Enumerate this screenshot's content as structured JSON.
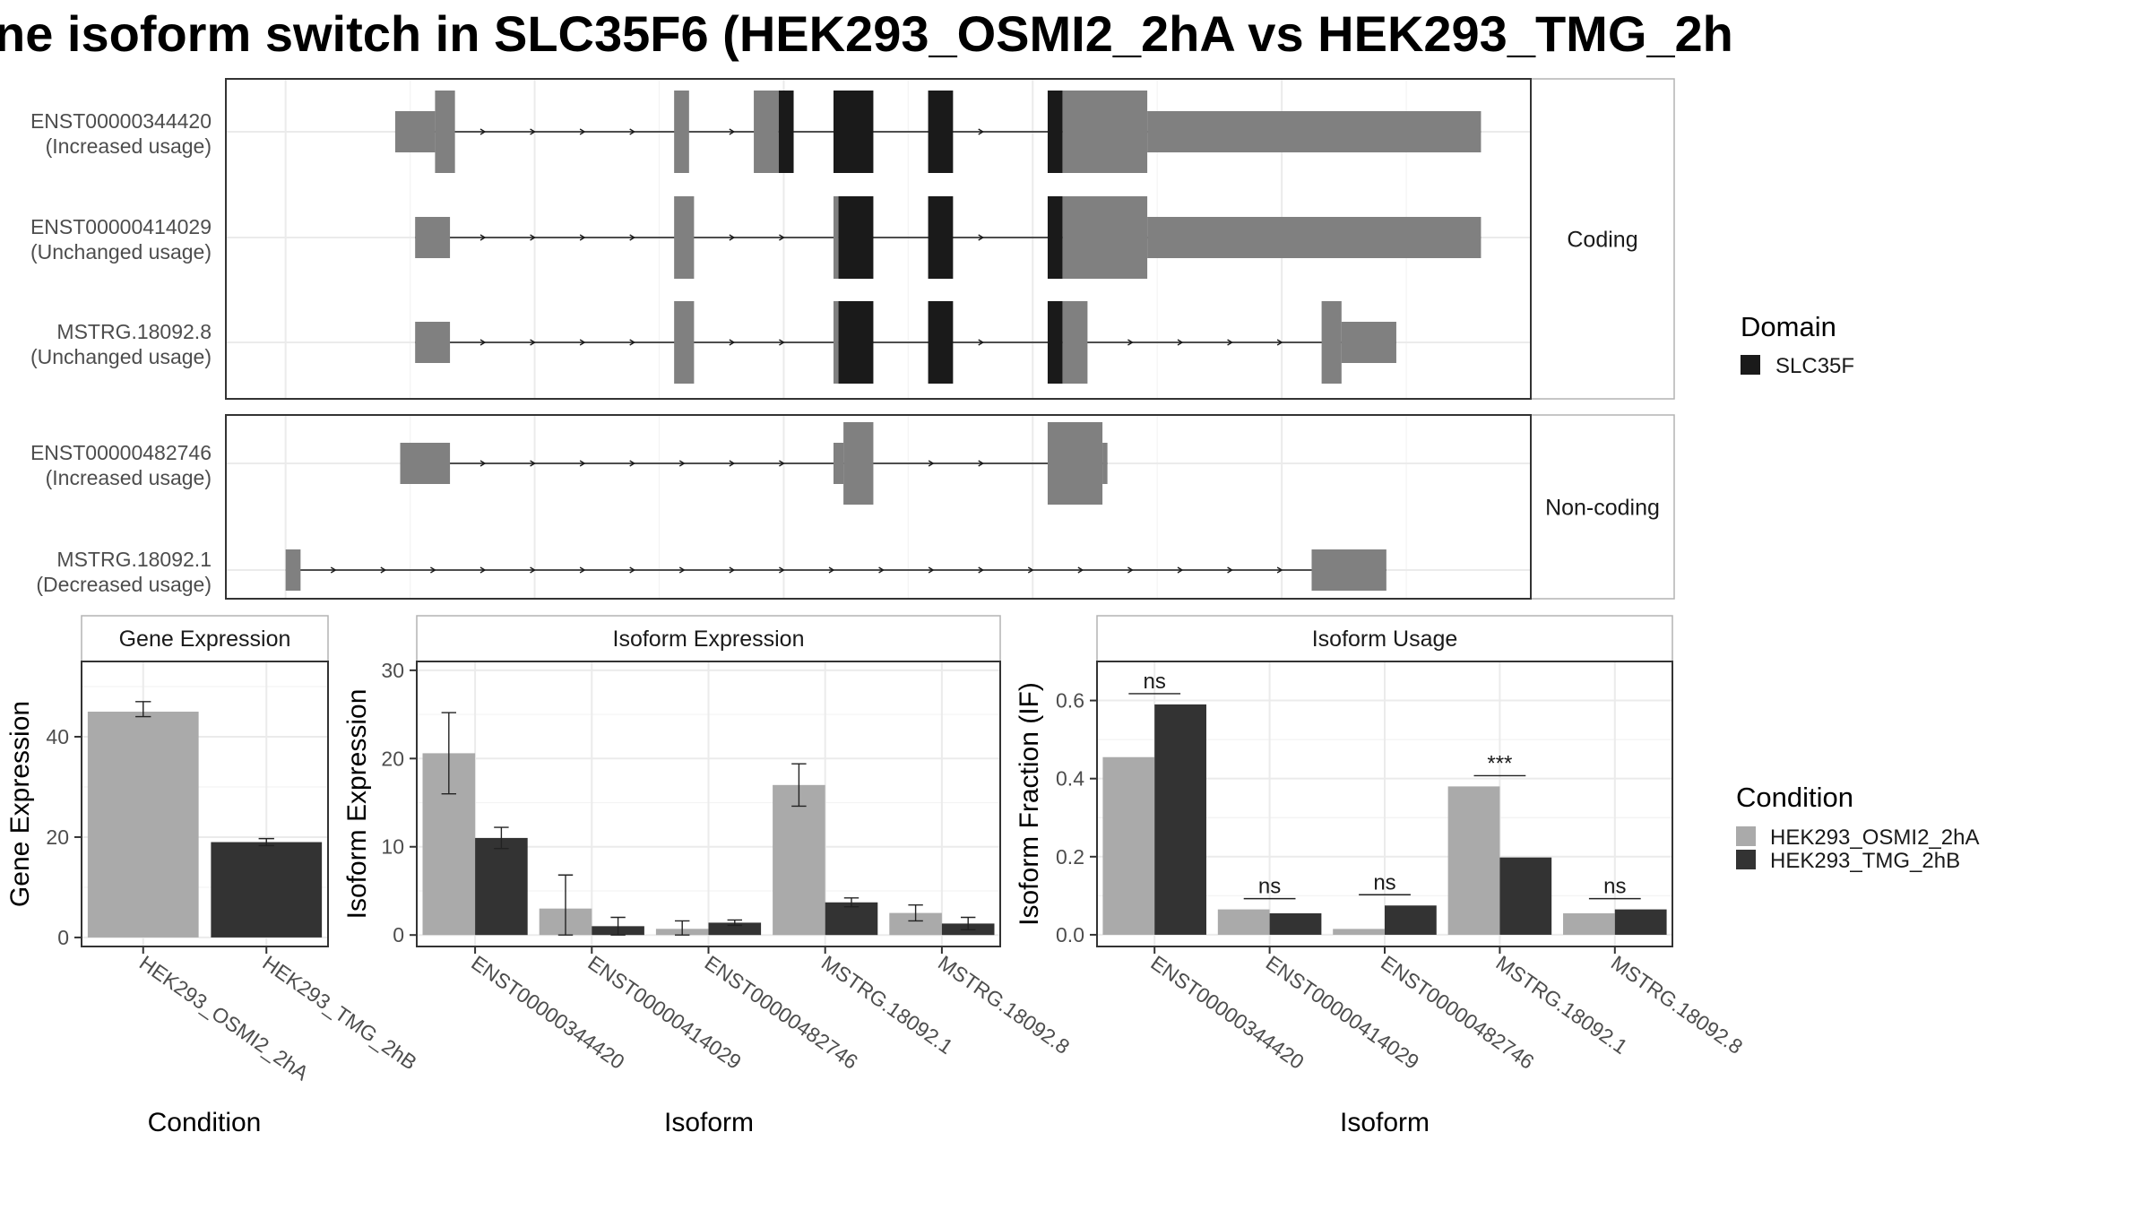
{
  "title": "ne isoform switch in SLC35F6 (HEK293_OSMI2_2hA vs HEK293_TMG_2h",
  "colors": {
    "exon": "#808080",
    "domain": "#1a1a1a",
    "cond_a": "#aaaaaa",
    "cond_b": "#333333",
    "frame": "#333333",
    "grid": "#ebebeb",
    "strip_fill": "#ffffff",
    "strip_border": "#b3b3b3"
  },
  "legend_domain": {
    "title": "Domain",
    "items": [
      "SLC35F"
    ]
  },
  "legend_condition": {
    "title": "Condition",
    "items": [
      "HEK293_OSMI2_2hA",
      "HEK293_TMG_2hB"
    ]
  },
  "chart_data": [
    {
      "type": "gene_structure",
      "groups": [
        "Coding",
        "Non-coding"
      ],
      "isoforms": [
        {
          "group": "Coding",
          "id": "ENST00000344420",
          "label": "(Increased usage)",
          "exons": [
            {
              "start": 22,
              "end": 30,
              "kind": "utr"
            },
            {
              "start": 30,
              "end": 34,
              "kind": "cds"
            },
            {
              "start": 78,
              "end": 81,
              "kind": "cds"
            },
            {
              "start": 94,
              "end": 99,
              "kind": "cds"
            },
            {
              "start": 99,
              "end": 102,
              "kind": "domain"
            },
            {
              "start": 110,
              "end": 118,
              "kind": "domain"
            },
            {
              "start": 129,
              "end": 134,
              "kind": "domain"
            },
            {
              "start": 153,
              "end": 156,
              "kind": "domain"
            },
            {
              "start": 156,
              "end": 173,
              "kind": "cds"
            },
            {
              "start": 173,
              "end": 240,
              "kind": "utr"
            }
          ]
        },
        {
          "group": "Coding",
          "id": "ENST00000414029",
          "label": "(Unchanged usage)",
          "exons": [
            {
              "start": 26,
              "end": 33,
              "kind": "utr"
            },
            {
              "start": 78,
              "end": 82,
              "kind": "cds"
            },
            {
              "start": 110,
              "end": 111,
              "kind": "cds"
            },
            {
              "start": 111,
              "end": 118,
              "kind": "domain"
            },
            {
              "start": 129,
              "end": 134,
              "kind": "domain"
            },
            {
              "start": 153,
              "end": 156,
              "kind": "domain"
            },
            {
              "start": 156,
              "end": 173,
              "kind": "cds"
            },
            {
              "start": 173,
              "end": 240,
              "kind": "utr"
            }
          ]
        },
        {
          "group": "Coding",
          "id": "MSTRG.18092.8",
          "label": "(Unchanged usage)",
          "exons": [
            {
              "start": 26,
              "end": 33,
              "kind": "utr"
            },
            {
              "start": 78,
              "end": 82,
              "kind": "cds"
            },
            {
              "start": 110,
              "end": 111,
              "kind": "cds"
            },
            {
              "start": 111,
              "end": 118,
              "kind": "domain"
            },
            {
              "start": 129,
              "end": 134,
              "kind": "domain"
            },
            {
              "start": 153,
              "end": 156,
              "kind": "domain"
            },
            {
              "start": 156,
              "end": 161,
              "kind": "cds"
            },
            {
              "start": 208,
              "end": 212,
              "kind": "cds"
            },
            {
              "start": 212,
              "end": 223,
              "kind": "utr"
            }
          ]
        },
        {
          "group": "Non-coding",
          "id": "ENST00000482746",
          "label": "(Increased usage)",
          "exons": [
            {
              "start": 23,
              "end": 33,
              "kind": "utr"
            },
            {
              "start": 110,
              "end": 112,
              "kind": "utr"
            },
            {
              "start": 112,
              "end": 118,
              "kind": "cds"
            },
            {
              "start": 153,
              "end": 164,
              "kind": "cds"
            },
            {
              "start": 164,
              "end": 165,
              "kind": "utr"
            }
          ]
        },
        {
          "group": "Non-coding",
          "id": "MSTRG.18092.1",
          "label": "(Decreased usage)",
          "exons": [
            {
              "start": 0,
              "end": 3,
              "kind": "utr"
            },
            {
              "start": 206,
              "end": 221,
              "kind": "utr"
            }
          ]
        }
      ]
    },
    {
      "type": "bar",
      "title": "Gene Expression",
      "xlabel": "Condition",
      "ylabel": "Gene Expression",
      "categories": [
        "HEK293_OSMI2_2hA",
        "HEK293_TMG_2hB"
      ],
      "values": [
        45,
        19
      ],
      "errors": [
        [
          44,
          47
        ],
        [
          18.3,
          19.7
        ]
      ],
      "ylim": [
        -1.8,
        55
      ],
      "yticks": [
        0,
        20,
        40
      ]
    },
    {
      "type": "bar",
      "title": "Isoform Expression",
      "xlabel": "Isoform",
      "ylabel": "Isoform Expression",
      "categories": [
        "ENST00000344420",
        "ENST00000414029",
        "ENST00000482746",
        "MSTRG.18092.1",
        "MSTRG.18092.8"
      ],
      "series": [
        {
          "name": "HEK293_OSMI2_2hA",
          "values": [
            20.6,
            3.0,
            0.7,
            17.0,
            2.5
          ],
          "errors": [
            [
              16.0,
              25.2
            ],
            [
              0,
              6.8
            ],
            [
              0,
              1.6
            ],
            [
              14.6,
              19.4
            ],
            [
              1.6,
              3.4
            ]
          ]
        },
        {
          "name": "HEK293_TMG_2hB",
          "values": [
            11.0,
            1.0,
            1.4,
            3.7,
            1.3
          ],
          "errors": [
            [
              9.8,
              12.2
            ],
            [
              0,
              2.0
            ],
            [
              1.1,
              1.7
            ],
            [
              3.2,
              4.2
            ],
            [
              0.6,
              2.0
            ]
          ]
        }
      ],
      "ylim": [
        -1.3,
        31
      ],
      "yticks": [
        0,
        10,
        20,
        30
      ]
    },
    {
      "type": "bar",
      "title": "Isoform Usage",
      "xlabel": "Isoform",
      "ylabel": "Isoform Fraction (IF)",
      "categories": [
        "ENST00000344420",
        "ENST00000414029",
        "ENST00000482746",
        "MSTRG.18092.1",
        "MSTRG.18092.8"
      ],
      "series": [
        {
          "name": "HEK293_OSMI2_2hA",
          "values": [
            0.455,
            0.065,
            0.015,
            0.38,
            0.055
          ]
        },
        {
          "name": "HEK293_TMG_2hB",
          "values": [
            0.59,
            0.055,
            0.075,
            0.198,
            0.065
          ]
        }
      ],
      "significance": [
        "ns",
        "ns",
        "ns",
        "***",
        "ns"
      ],
      "ylim": [
        -0.03,
        0.7
      ],
      "yticks": [
        0.0,
        0.2,
        0.4,
        0.6
      ]
    }
  ]
}
